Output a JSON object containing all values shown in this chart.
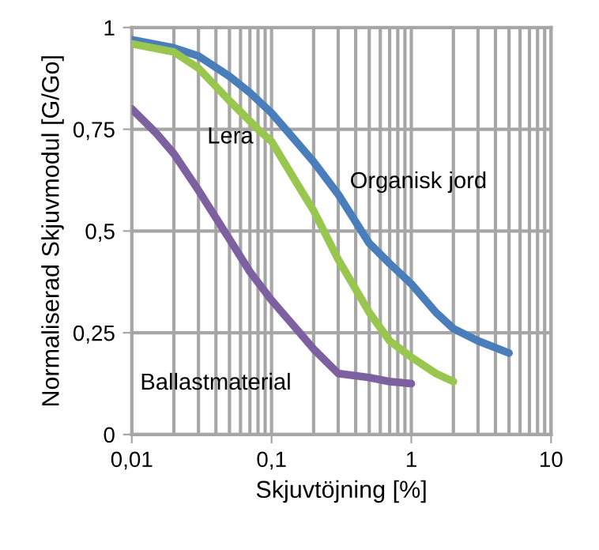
{
  "chart_data": {
    "type": "line",
    "xlabel": "Skjuvtöjning [%]",
    "ylabel": "Normaliserad Skjuvmodul [G/Go]",
    "log": "x",
    "grid": true,
    "legend": false,
    "marker": "none",
    "line_style": "solid",
    "xlim": [
      0.01,
      10
    ],
    "xticks": [
      {
        "value": 0.01,
        "label": "0,01"
      },
      {
        "value": 0.1,
        "label": "0,1"
      },
      1,
      10
    ],
    "ylim": [
      0,
      1
    ],
    "yticks": [
      0,
      {
        "value": 0.25,
        "label": "0,25"
      },
      {
        "value": 0.5,
        "label": "0,5"
      },
      {
        "value": 0.75,
        "label": "0,75"
      },
      1
    ],
    "series": [
      {
        "color": "#4a7ebb",
        "x": [
          0.01,
          0.02,
          0.03,
          0.05,
          0.07,
          0.1,
          0.15,
          0.2,
          0.3,
          0.5,
          0.7,
          1,
          1.5,
          2,
          3,
          5
        ],
        "values": [
          0.97,
          0.95,
          0.93,
          0.88,
          0.84,
          0.79,
          0.72,
          0.67,
          0.59,
          0.47,
          0.42,
          0.37,
          0.3,
          0.26,
          0.23,
          0.2
        ]
      },
      {
        "color": "#98c64f",
        "x": [
          0.01,
          0.02,
          0.03,
          0.05,
          0.08,
          0.1,
          0.15,
          0.2,
          0.3,
          0.5,
          0.7,
          1,
          1.5,
          2
        ],
        "values": [
          0.96,
          0.94,
          0.9,
          0.82,
          0.75,
          0.72,
          0.62,
          0.55,
          0.43,
          0.3,
          0.23,
          0.19,
          0.15,
          0.13
        ]
      },
      {
        "color": "#7d60a0",
        "x": [
          0.01,
          0.015,
          0.02,
          0.03,
          0.05,
          0.07,
          0.1,
          0.15,
          0.2,
          0.3,
          0.5,
          0.7,
          1
        ],
        "values": [
          0.8,
          0.74,
          0.69,
          0.6,
          0.48,
          0.4,
          0.33,
          0.26,
          0.21,
          0.15,
          0.14,
          0.13,
          0.125
        ]
      }
    ],
    "annotations": [
      "Lera",
      "Organisk jord",
      "Ballastmaterial"
    ]
  }
}
